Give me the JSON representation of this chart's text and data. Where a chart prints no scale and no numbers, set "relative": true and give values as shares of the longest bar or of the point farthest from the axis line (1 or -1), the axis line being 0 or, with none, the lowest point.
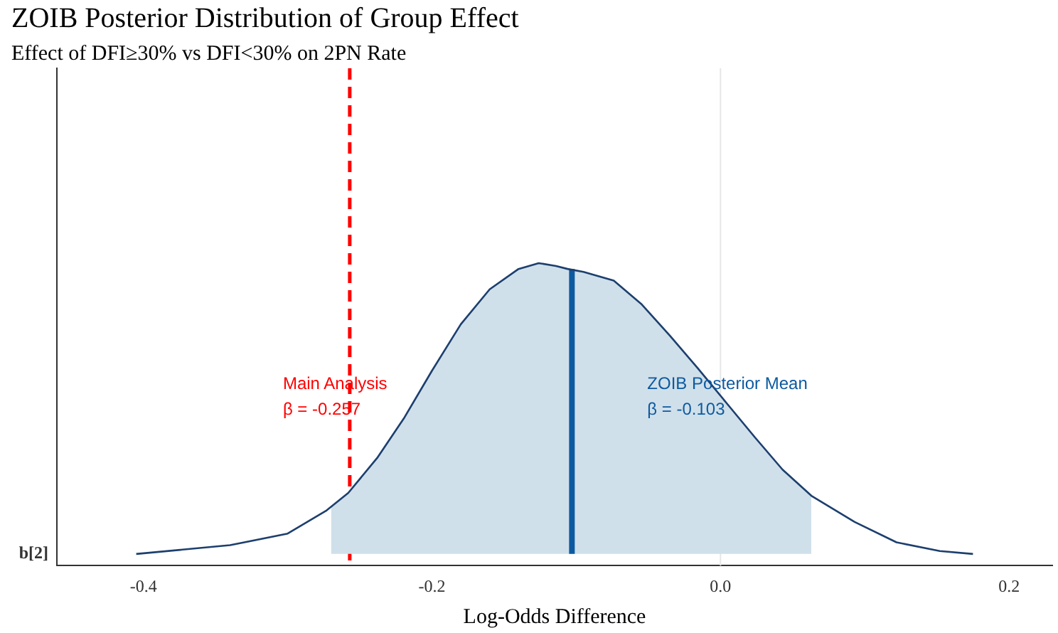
{
  "chart_data": {
    "type": "area",
    "title": "ZOIB Posterior Distribution of Group Effect",
    "subtitle": "Effect of DFI≥30% vs DFI<30% on 2PN Rate",
    "xlabel": "Log-Odds Difference",
    "relative": true,
    "xlim": [
      -0.46,
      0.23
    ],
    "xticks": [
      -0.4,
      -0.2,
      {
        "value": 0,
        "label": "0.0"
      },
      0.2
    ],
    "legend": false,
    "grid": false,
    "series": [
      {
        "color": "#d0e0ea",
        "x": [
          -0.27,
          -0.258,
          -0.238,
          -0.219,
          -0.2,
          -0.18,
          -0.16,
          -0.14,
          -0.126,
          -0.114,
          -0.106,
          -0.095,
          -0.074,
          -0.055,
          -0.035,
          -0.016,
          0.004,
          0.024,
          0.043,
          0.063
        ],
        "values": [
          0.16,
          0.21,
          0.33,
          0.47,
          0.63,
          0.79,
          0.91,
          0.98,
          1,
          0.99,
          0.98,
          0.97,
          0.94,
          0.86,
          0.75,
          0.64,
          0.52,
          0.4,
          0.29,
          0.2
        ]
      },
      {
        "type": "line",
        "color": "#1c3f6e",
        "x": [
          -0.405,
          -0.34,
          -0.3,
          -0.273,
          -0.258,
          -0.238,
          -0.219,
          -0.2,
          -0.18,
          -0.16,
          -0.14,
          -0.126,
          -0.114,
          -0.106,
          -0.095,
          -0.074,
          -0.055,
          -0.035,
          -0.016,
          0.004,
          0.024,
          0.043,
          0.063,
          0.093,
          0.122,
          0.152,
          0.175
        ],
        "values": [
          0,
          0.03,
          0.07,
          0.15,
          0.21,
          0.33,
          0.47,
          0.63,
          0.79,
          0.91,
          0.98,
          1,
          0.99,
          0.98,
          0.97,
          0.94,
          0.86,
          0.75,
          0.64,
          0.52,
          0.4,
          0.29,
          0.2,
          0.11,
          0.04,
          0.01,
          0
        ]
      },
      {
        "type": "line",
        "name": "ZOIB Posterior Mean\nβ = -0.103",
        "color": "#0d5aa0",
        "x": [
          -0.103,
          -0.103
        ],
        "values": [
          0,
          0.98
        ]
      }
    ],
    "ref_lines": [
      {
        "axis": "x",
        "value": 0,
        "color": "#e6e6e6"
      },
      {
        "axis": "x",
        "value": -0.257,
        "label": "Main Analysis\nβ = -0.257",
        "color": "#ff0000",
        "line_style": "dashed"
      }
    ],
    "annotations": [
      "b[2]"
    ]
  }
}
